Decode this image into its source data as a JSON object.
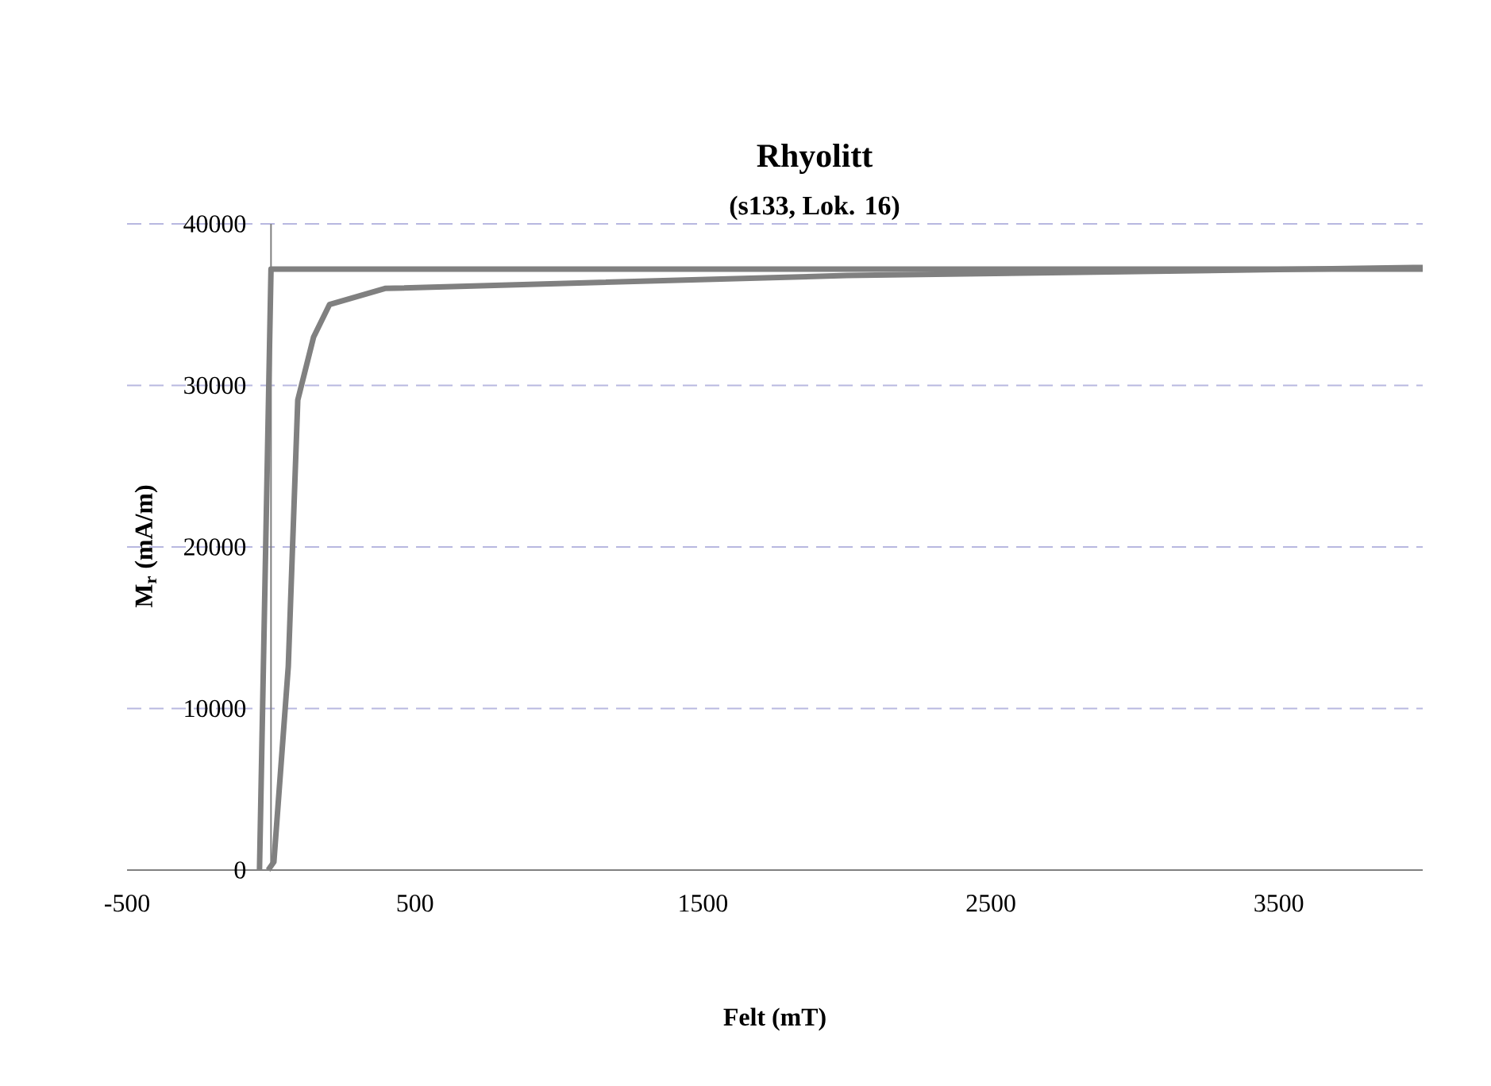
{
  "chart_data": {
    "type": "line",
    "title": "Rhyolitt",
    "subtitle": "(s133, Lok. 16)",
    "xlabel": "Felt (mT)",
    "ylabel": "M$_{r}$ (mA/m)",
    "xlim": [
      -500,
      4000
    ],
    "xticks": [
      -500,
      500,
      1500,
      2500,
      3500
    ],
    "ylim": [
      0,
      40000
    ],
    "yticks": [
      0,
      10000,
      20000,
      30000,
      40000
    ],
    "grid": "y",
    "marker": "none",
    "line_style": "solid",
    "series": [
      {
        "color": "#808080",
        "x": [
          -40,
          0,
          4000
        ],
        "values": [
          0,
          37200,
          37200
        ]
      },
      {
        "color": "#808080",
        "x": [
          -10,
          10,
          60,
          93,
          148,
          203,
          396,
          2000,
          4000
        ],
        "values": [
          0,
          500,
          12600,
          29100,
          33000,
          35000,
          36000,
          36800,
          37300
        ]
      }
    ]
  }
}
